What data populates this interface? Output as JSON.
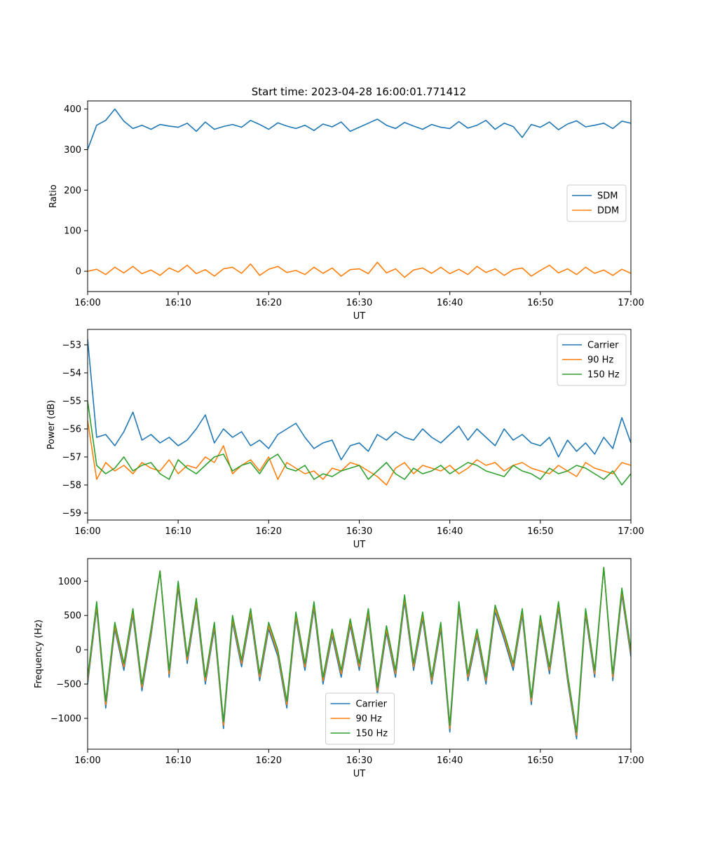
{
  "figure": {
    "title": "Start time: 2023-04-28 16:00:01.771412"
  },
  "colors": {
    "blue": "#1f77b4",
    "orange": "#ff7f0e",
    "green": "#2ca02c"
  },
  "chart_data": [
    {
      "type": "line",
      "title": "Start time: 2023-04-28 16:00:01.771412",
      "xlabel": "UT",
      "ylabel": "Ratio",
      "xlim": [
        "16:00",
        "17:00"
      ],
      "ylim": [
        -50,
        420
      ],
      "x_ticks": [
        "16:00",
        "16:10",
        "16:20",
        "16:30",
        "16:40",
        "16:50",
        "17:00"
      ],
      "y_ticks": [
        0,
        100,
        200,
        300,
        400
      ],
      "legend_location": "center right",
      "x": [
        "16:00",
        "16:01",
        "16:02",
        "16:03",
        "16:04",
        "16:05",
        "16:06",
        "16:07",
        "16:08",
        "16:09",
        "16:10",
        "16:11",
        "16:12",
        "16:13",
        "16:14",
        "16:15",
        "16:16",
        "16:17",
        "16:18",
        "16:19",
        "16:20",
        "16:21",
        "16:22",
        "16:23",
        "16:24",
        "16:25",
        "16:26",
        "16:27",
        "16:28",
        "16:29",
        "16:30",
        "16:31",
        "16:32",
        "16:33",
        "16:34",
        "16:35",
        "16:36",
        "16:37",
        "16:38",
        "16:39",
        "16:40",
        "16:41",
        "16:42",
        "16:43",
        "16:44",
        "16:45",
        "16:46",
        "16:47",
        "16:48",
        "16:49",
        "16:50",
        "16:51",
        "16:52",
        "16:53",
        "16:54",
        "16:55",
        "16:56",
        "16:57",
        "16:58",
        "16:59",
        "17:00"
      ],
      "series": [
        {
          "name": "SDM",
          "color": "#1f77b4",
          "values": [
            300,
            360,
            372,
            400,
            370,
            352,
            360,
            350,
            362,
            358,
            355,
            365,
            345,
            368,
            350,
            357,
            362,
            355,
            372,
            362,
            350,
            366,
            358,
            352,
            360,
            347,
            363,
            356,
            368,
            345,
            355,
            365,
            375,
            360,
            352,
            367,
            358,
            350,
            362,
            355,
            352,
            369,
            353,
            360,
            372,
            350,
            365,
            357,
            330,
            362,
            355,
            368,
            349,
            363,
            371,
            356,
            360,
            365,
            352,
            370,
            365
          ]
        },
        {
          "name": "DDM",
          "color": "#ff7f0e",
          "values": [
            0,
            5,
            -8,
            10,
            -4,
            12,
            -6,
            3,
            -10,
            8,
            -2,
            15,
            -6,
            4,
            -12,
            6,
            10,
            -5,
            18,
            -10,
            5,
            12,
            -3,
            2,
            -8,
            10,
            -5,
            8,
            -12,
            4,
            6,
            -6,
            22,
            -4,
            6,
            -15,
            3,
            8,
            -5,
            10,
            -6,
            5,
            -8,
            12,
            -3,
            6,
            -10,
            4,
            8,
            -12,
            2,
            15,
            -4,
            6,
            -8,
            10,
            -5,
            3,
            -10,
            5,
            -5
          ]
        }
      ]
    },
    {
      "type": "line",
      "xlabel": "UT",
      "ylabel": "Power (dB)",
      "xlim": [
        "16:00",
        "17:00"
      ],
      "ylim": [
        -59.25,
        -52.45
      ],
      "x_ticks": [
        "16:00",
        "16:10",
        "16:20",
        "16:30",
        "16:40",
        "16:50",
        "17:00"
      ],
      "y_ticks": [
        -59,
        -58,
        -57,
        -56,
        -55,
        -54,
        -53
      ],
      "legend_location": "upper right",
      "x": [
        "16:00",
        "16:01",
        "16:02",
        "16:03",
        "16:04",
        "16:05",
        "16:06",
        "16:07",
        "16:08",
        "16:09",
        "16:10",
        "16:11",
        "16:12",
        "16:13",
        "16:14",
        "16:15",
        "16:16",
        "16:17",
        "16:18",
        "16:19",
        "16:20",
        "16:21",
        "16:22",
        "16:23",
        "16:24",
        "16:25",
        "16:26",
        "16:27",
        "16:28",
        "16:29",
        "16:30",
        "16:31",
        "16:32",
        "16:33",
        "16:34",
        "16:35",
        "16:36",
        "16:37",
        "16:38",
        "16:39",
        "16:40",
        "16:41",
        "16:42",
        "16:43",
        "16:44",
        "16:45",
        "16:46",
        "16:47",
        "16:48",
        "16:49",
        "16:50",
        "16:51",
        "16:52",
        "16:53",
        "16:54",
        "16:55",
        "16:56",
        "16:57",
        "16:58",
        "16:59",
        "17:00"
      ],
      "series": [
        {
          "name": "Carrier",
          "color": "#1f77b4",
          "values": [
            -52.8,
            -56.3,
            -56.2,
            -56.6,
            -56.1,
            -55.4,
            -56.4,
            -56.2,
            -56.5,
            -56.3,
            -56.6,
            -56.4,
            -56.0,
            -55.5,
            -56.5,
            -56.0,
            -56.3,
            -56.1,
            -56.6,
            -56.4,
            -56.7,
            -56.2,
            -56.0,
            -55.8,
            -56.3,
            -56.7,
            -56.5,
            -56.4,
            -57.1,
            -56.6,
            -56.5,
            -56.8,
            -56.2,
            -56.4,
            -56.1,
            -56.3,
            -56.4,
            -56.0,
            -56.3,
            -56.5,
            -56.2,
            -55.9,
            -56.4,
            -56.0,
            -56.3,
            -56.6,
            -56.0,
            -56.4,
            -56.2,
            -56.5,
            -56.6,
            -56.3,
            -57.0,
            -56.4,
            -56.8,
            -56.5,
            -56.9,
            -56.3,
            -56.7,
            -55.6,
            -56.5
          ]
        },
        {
          "name": "90 Hz",
          "color": "#ff7f0e",
          "values": [
            -55.7,
            -57.8,
            -57.2,
            -57.5,
            -57.3,
            -57.6,
            -57.2,
            -57.4,
            -57.5,
            -57.1,
            -57.6,
            -57.3,
            -57.4,
            -57.0,
            -57.2,
            -56.6,
            -57.6,
            -57.3,
            -57.1,
            -57.5,
            -57.0,
            -57.8,
            -57.2,
            -57.4,
            -57.6,
            -57.5,
            -57.8,
            -57.4,
            -57.5,
            -57.2,
            -57.3,
            -57.5,
            -57.7,
            -58.0,
            -57.4,
            -57.2,
            -57.6,
            -57.3,
            -57.4,
            -57.5,
            -57.3,
            -57.6,
            -57.4,
            -57.1,
            -57.3,
            -57.2,
            -57.5,
            -57.3,
            -57.2,
            -57.4,
            -57.5,
            -57.6,
            -57.3,
            -57.5,
            -57.7,
            -57.2,
            -57.4,
            -57.5,
            -57.6,
            -57.2,
            -57.3
          ]
        },
        {
          "name": "150 Hz",
          "color": "#2ca02c",
          "values": [
            -55.0,
            -57.3,
            -57.6,
            -57.4,
            -57.0,
            -57.5,
            -57.3,
            -57.2,
            -57.6,
            -57.8,
            -57.1,
            -57.4,
            -57.6,
            -57.3,
            -57.0,
            -56.9,
            -57.5,
            -57.3,
            -57.2,
            -57.6,
            -57.1,
            -56.9,
            -57.4,
            -57.5,
            -57.3,
            -57.8,
            -57.6,
            -57.7,
            -57.5,
            -57.4,
            -57.3,
            -57.8,
            -57.5,
            -57.2,
            -57.6,
            -57.8,
            -57.4,
            -57.6,
            -57.5,
            -57.3,
            -57.6,
            -57.4,
            -57.2,
            -57.3,
            -57.5,
            -57.6,
            -57.7,
            -57.3,
            -57.5,
            -57.6,
            -57.8,
            -57.4,
            -57.6,
            -57.5,
            -57.3,
            -57.4,
            -57.6,
            -57.8,
            -57.5,
            -58.0,
            -57.6
          ]
        }
      ]
    },
    {
      "type": "line",
      "xlabel": "UT",
      "ylabel": "Frequency (Hz)",
      "xlim": [
        "16:00",
        "17:00"
      ],
      "ylim": [
        -1450,
        1330
      ],
      "x_ticks": [
        "16:00",
        "16:10",
        "16:20",
        "16:30",
        "16:40",
        "16:50",
        "17:00"
      ],
      "y_ticks": [
        -1000,
        -500,
        0,
        500,
        1000
      ],
      "legend_location": "lower center",
      "x": [
        "16:00",
        "16:01",
        "16:02",
        "16:03",
        "16:04",
        "16:05",
        "16:06",
        "16:07",
        "16:08",
        "16:09",
        "16:10",
        "16:11",
        "16:12",
        "16:13",
        "16:14",
        "16:15",
        "16:16",
        "16:17",
        "16:18",
        "16:19",
        "16:20",
        "16:21",
        "16:22",
        "16:23",
        "16:24",
        "16:25",
        "16:26",
        "16:27",
        "16:28",
        "16:29",
        "16:30",
        "16:31",
        "16:32",
        "16:33",
        "16:34",
        "16:35",
        "16:36",
        "16:37",
        "16:38",
        "16:39",
        "16:40",
        "16:41",
        "16:42",
        "16:43",
        "16:44",
        "16:45",
        "16:46",
        "16:47",
        "16:48",
        "16:49",
        "16:50",
        "16:51",
        "16:52",
        "16:53",
        "16:54",
        "16:55",
        "16:56",
        "16:57",
        "16:58",
        "16:59",
        "17:00"
      ],
      "series": [
        {
          "name": "Carrier",
          "color": "#1f77b4",
          "values": [
            -500,
            600,
            -850,
            300,
            -300,
            500,
            -600,
            200,
            1150,
            -400,
            900,
            -200,
            650,
            -500,
            300,
            -1150,
            400,
            -250,
            500,
            -450,
            300,
            -100,
            -850,
            450,
            -300,
            600,
            -500,
            200,
            -400,
            350,
            -300,
            500,
            -650,
            250,
            -400,
            700,
            -300,
            450,
            -500,
            300,
            -1200,
            600,
            -450,
            200,
            -500,
            550,
            150,
            -300,
            500,
            -800,
            400,
            -350,
            600,
            -450,
            -1300,
            500,
            -400,
            1200,
            -450,
            800,
            -100
          ]
        },
        {
          "name": "90 Hz",
          "color": "#ff7f0e",
          "values": [
            -450,
            650,
            -800,
            350,
            -250,
            550,
            -550,
            250,
            1150,
            -350,
            950,
            -150,
            700,
            -450,
            350,
            -1100,
            450,
            -200,
            550,
            -400,
            350,
            -50,
            -800,
            500,
            -250,
            650,
            -450,
            250,
            -350,
            400,
            -250,
            550,
            -600,
            300,
            -350,
            750,
            -250,
            500,
            -450,
            350,
            -1150,
            650,
            -400,
            250,
            -450,
            600,
            200,
            -250,
            550,
            -750,
            450,
            -300,
            650,
            -400,
            -1250,
            550,
            -350,
            1200,
            -400,
            850,
            -50
          ]
        },
        {
          "name": "150 Hz",
          "color": "#2ca02c",
          "values": [
            -400,
            700,
            -750,
            400,
            -200,
            600,
            -500,
            300,
            1150,
            -300,
            1000,
            -100,
            750,
            -400,
            400,
            -1050,
            500,
            -150,
            600,
            -350,
            400,
            0,
            -750,
            550,
            -200,
            700,
            -400,
            300,
            -300,
            450,
            -200,
            600,
            -550,
            350,
            -300,
            800,
            -200,
            550,
            -400,
            400,
            -1100,
            700,
            -350,
            300,
            -400,
            650,
            250,
            -200,
            600,
            -700,
            500,
            -250,
            700,
            -350,
            -1200,
            600,
            -300,
            1200,
            -350,
            900,
            0
          ]
        }
      ]
    }
  ]
}
